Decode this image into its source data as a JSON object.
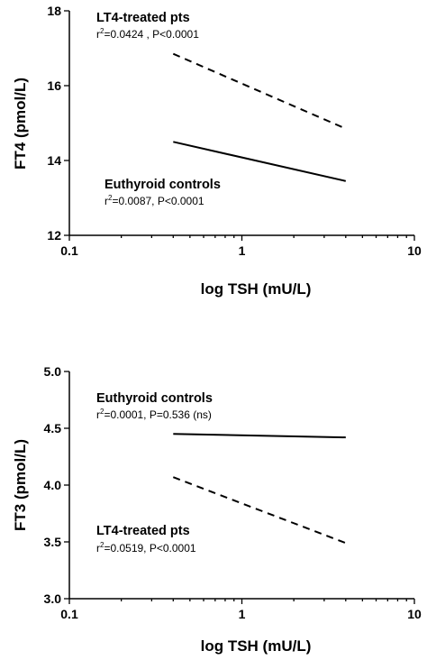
{
  "chart_data": [
    {
      "type": "line",
      "xscale": "log",
      "xlim": [
        0.1,
        10
      ],
      "ylim": [
        12,
        18
      ],
      "xticks": [
        0.1,
        1,
        10
      ],
      "xtick_labels": [
        "0.1",
        "1",
        "10"
      ],
      "yticks": [
        12,
        14,
        16,
        18
      ],
      "ytick_labels": [
        "12",
        "14",
        "16",
        "18"
      ],
      "xlabel": "log TSH (mU/L)",
      "ylabel": "FT4 (pmol/L)",
      "grid": false,
      "series": [
        {
          "name": "LT4-treated pts",
          "style": "dashed",
          "x": [
            0.4,
            4
          ],
          "y": [
            16.85,
            14.85
          ]
        },
        {
          "name": "Euthyroid controls",
          "style": "solid",
          "x": [
            0.4,
            4
          ],
          "y": [
            14.5,
            13.45
          ]
        }
      ],
      "annotations": [
        {
          "title": "LT4-treated pts",
          "stat_prefix": "r",
          "stat_sup": "2",
          "stat_rest": "=0.0424 , P<0.0001"
        },
        {
          "title": "Euthyroid controls",
          "stat_prefix": "r",
          "stat_sup": "2",
          "stat_rest": "=0.0087, P<0.0001"
        }
      ]
    },
    {
      "type": "line",
      "xscale": "log",
      "xlim": [
        0.1,
        10
      ],
      "ylim": [
        3.0,
        5.0
      ],
      "xticks": [
        0.1,
        1,
        10
      ],
      "xtick_labels": [
        "0.1",
        "1",
        "10"
      ],
      "yticks": [
        3.0,
        3.5,
        4.0,
        4.5,
        5.0
      ],
      "ytick_labels": [
        "3.0",
        "3.5",
        "4.0",
        "4.5",
        "5.0"
      ],
      "xlabel": "log TSH (mU/L)",
      "ylabel": "FT3 (pmol/L)",
      "grid": false,
      "series": [
        {
          "name": "Euthyroid controls",
          "style": "solid",
          "x": [
            0.4,
            4
          ],
          "y": [
            4.45,
            4.42
          ]
        },
        {
          "name": "LT4-treated pts",
          "style": "dashed",
          "x": [
            0.4,
            4
          ],
          "y": [
            4.07,
            3.49
          ]
        }
      ],
      "annotations": [
        {
          "title": "Euthyroid controls",
          "stat_prefix": "r",
          "stat_sup": "2",
          "stat_rest": "=0.0001, P=0.536 (ns)"
        },
        {
          "title": "LT4-treated pts",
          "stat_prefix": "r",
          "stat_sup": "2",
          "stat_rest": "=0.0519,  P<0.0001"
        }
      ]
    }
  ]
}
